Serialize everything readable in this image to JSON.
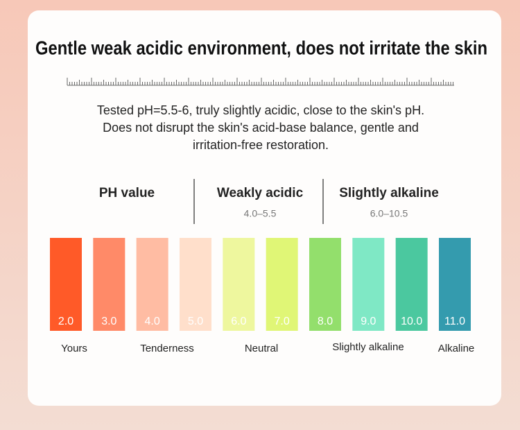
{
  "header": {
    "title": "Gentle weak acidic environment, does not irritate the skin"
  },
  "description": {
    "lines": [
      "Tested pH=5.5-6, truly slightly acidic, close to the skin's pH.",
      "Does not disrupt the skin's acid-base balance, gentle and",
      "irritation-free restoration."
    ]
  },
  "columns": [
    {
      "title": "PH value"
    },
    {
      "title": "Weakly acidic",
      "range": "4.0–5.5"
    },
    {
      "title": "Slightly alkaline",
      "range": "6.0–10.5"
    }
  ],
  "swatches": [
    {
      "label": "2.0",
      "color": "#ff5a28"
    },
    {
      "label": "3.0",
      "color": "#ff8a68"
    },
    {
      "label": "4.0",
      "color": "#ffbca3"
    },
    {
      "label": "5.0",
      "color": "#ffdfcb"
    },
    {
      "label": "6.0",
      "color": "#eef79e"
    },
    {
      "label": "7.0",
      "color": "#e0f676"
    },
    {
      "label": "8.0",
      "color": "#93df6c"
    },
    {
      "label": "9.0",
      "color": "#7fe8c5"
    },
    {
      "label": "10.0",
      "color": "#4bc89f"
    },
    {
      "label": "11.0",
      "color": "#349bae"
    }
  ],
  "scale_labels": [
    "Yours",
    "Tenderness",
    "Neutral",
    "Slightly alkaline",
    "Alkaline"
  ]
}
